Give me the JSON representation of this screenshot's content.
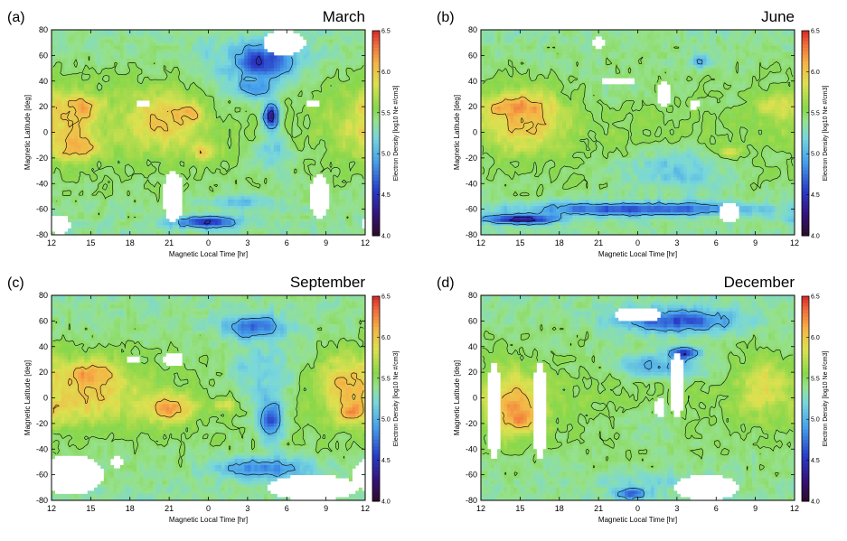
{
  "chart_data": [
    {
      "type": "heatmap",
      "letter": "(a)",
      "title": "March",
      "xlabel": "Magnetic Local Time [hr]",
      "ylabel": "Magnetic Latitude [deg]",
      "x_ticks": [
        "12",
        "15",
        "18",
        "21",
        "0",
        "3",
        "6",
        "9",
        "12"
      ],
      "y_ticks": [
        "80",
        "60",
        "40",
        "20",
        "0",
        "-20",
        "-40",
        "-60",
        "-80"
      ],
      "ylim": [
        -80,
        80
      ],
      "colorbar": {
        "label": "Electron Density [log10 Ne #/cm3]",
        "ticks": [
          "6.5",
          "6.0",
          "5.5",
          "5.0",
          "4.5",
          "4.0"
        ],
        "range": [
          4.0,
          6.5
        ]
      },
      "blobs": [
        {
          "x": 1.0,
          "y": 10,
          "rx": 3.2,
          "ry": 28,
          "v": 6.0
        },
        {
          "x": 8.5,
          "y": 10,
          "rx": 3.0,
          "ry": 26,
          "v": 6.0
        },
        {
          "x": 2.0,
          "y": -12,
          "rx": 1.8,
          "ry": 10,
          "v": 6.15
        },
        {
          "x": 2.5,
          "y": 20,
          "rx": 1.5,
          "ry": 8,
          "v": 6.1
        },
        {
          "x": 10.3,
          "y": 15,
          "rx": 1.3,
          "ry": 8,
          "v": 6.1
        },
        {
          "x": 11.7,
          "y": -15,
          "rx": 1.0,
          "ry": 8,
          "v": 6.0
        },
        {
          "x": 16.0,
          "y": 55,
          "rx": 3.0,
          "ry": 16,
          "v": 4.5
        },
        {
          "x": 15.5,
          "y": 35,
          "rx": 1.8,
          "ry": 10,
          "v": 4.9
        },
        {
          "x": 16.8,
          "y": 12,
          "rx": 0.7,
          "ry": 12,
          "v": 4.3
        },
        {
          "x": 17.0,
          "y": -15,
          "rx": 1.5,
          "ry": 18,
          "v": 5.1
        },
        {
          "x": 11.8,
          "y": -70,
          "rx": 2.5,
          "ry": 5,
          "v": 4.4
        },
        {
          "x": 14.5,
          "y": -55,
          "rx": 2.5,
          "ry": 8,
          "v": 5.05
        },
        {
          "x": 12.5,
          "y": 55,
          "rx": 1.8,
          "ry": 20,
          "v": 5.2
        }
      ],
      "gaps": [
        {
          "x": 17.8,
          "y": 70,
          "rx": 1.6,
          "ry": 10
        },
        {
          "x": 9.3,
          "y": -50,
          "rx": 0.8,
          "ry": 20
        },
        {
          "x": 20.5,
          "y": -50,
          "rx": 0.8,
          "ry": 18
        },
        {
          "x": 7.0,
          "y": 22,
          "rx": 0.6,
          "ry": 3
        },
        {
          "x": 20.0,
          "y": 22,
          "rx": 0.5,
          "ry": 3
        },
        {
          "x": 0.6,
          "y": -72,
          "rx": 0.8,
          "ry": 8
        }
      ]
    },
    {
      "type": "heatmap",
      "letter": "(b)",
      "title": "June",
      "xlabel": "Magnetic Local Time [hr]",
      "ylabel": "Magnetic Latitude [deg]",
      "x_ticks": [
        "12",
        "15",
        "18",
        "21",
        "0",
        "3",
        "6",
        "9",
        "12"
      ],
      "y_ticks": [
        "80",
        "60",
        "40",
        "20",
        "0",
        "-20",
        "-40",
        "-60",
        "-80"
      ],
      "ylim": [
        -80,
        80
      ],
      "colorbar": {
        "label": "Electron Density [log10 Ne #/cm3]",
        "ticks": [
          "6.5",
          "6.0",
          "5.5",
          "5.0",
          "4.5",
          "4.0"
        ],
        "range": [
          4.0,
          6.5
        ]
      },
      "blobs": [
        {
          "x": 3.3,
          "y": 10,
          "rx": 3.5,
          "ry": 26,
          "v": 6.05
        },
        {
          "x": 2.5,
          "y": 20,
          "rx": 2.2,
          "ry": 8,
          "v": 6.25
        },
        {
          "x": 22.5,
          "y": 20,
          "rx": 1.5,
          "ry": 10,
          "v": 5.9
        },
        {
          "x": 19.0,
          "y": -15,
          "rx": 1.0,
          "ry": 5,
          "v": 6.0
        },
        {
          "x": 15.0,
          "y": -30,
          "rx": 4.5,
          "ry": 18,
          "v": 5.1
        },
        {
          "x": 12.0,
          "y": -60,
          "rx": 10.0,
          "ry": 6,
          "v": 4.6
        },
        {
          "x": 3.0,
          "y": -68,
          "rx": 3.0,
          "ry": 4,
          "v": 4.3
        },
        {
          "x": 16.8,
          "y": 55,
          "rx": 0.8,
          "ry": 6,
          "v": 5.0
        },
        {
          "x": 10.5,
          "y": 30,
          "rx": 2.0,
          "ry": 10,
          "v": 5.35
        }
      ],
      "gaps": [
        {
          "x": 10.5,
          "y": 40,
          "rx": 1.5,
          "ry": 3
        },
        {
          "x": 14.0,
          "y": 30,
          "rx": 0.5,
          "ry": 10
        },
        {
          "x": 16.3,
          "y": 22,
          "rx": 0.4,
          "ry": 4
        },
        {
          "x": 19.0,
          "y": -62,
          "rx": 0.8,
          "ry": 8
        },
        {
          "x": 9.0,
          "y": 70,
          "rx": 0.6,
          "ry": 4
        }
      ]
    },
    {
      "type": "heatmap",
      "letter": "(c)",
      "title": "September",
      "xlabel": "Magnetic Local Time [hr]",
      "ylabel": "Magnetic Latitude [deg]",
      "x_ticks": [
        "12",
        "15",
        "18",
        "21",
        "0",
        "3",
        "6",
        "9",
        "12"
      ],
      "y_ticks": [
        "80",
        "60",
        "40",
        "20",
        "0",
        "-20",
        "-40",
        "-60",
        "-80"
      ],
      "ylim": [
        -80,
        80
      ],
      "colorbar": {
        "label": "Electron Density [log10 Ne #/cm3]",
        "ticks": [
          "6.5",
          "6.0",
          "5.5",
          "5.0",
          "4.5",
          "4.0"
        ],
        "range": [
          4.0,
          6.5
        ]
      },
      "blobs": [
        {
          "x": 3.0,
          "y": 5,
          "rx": 4.0,
          "ry": 28,
          "v": 6.0
        },
        {
          "x": 3.0,
          "y": 18,
          "rx": 1.8,
          "ry": 8,
          "v": 6.2
        },
        {
          "x": 9.0,
          "y": -8,
          "rx": 2.0,
          "ry": 12,
          "v": 6.15
        },
        {
          "x": 22.5,
          "y": 10,
          "rx": 2.5,
          "ry": 25,
          "v": 6.05
        },
        {
          "x": 23.0,
          "y": -10,
          "rx": 1.2,
          "ry": 10,
          "v": 6.2
        },
        {
          "x": 13.5,
          "y": -5,
          "rx": 1.0,
          "ry": 6,
          "v": 6.0
        },
        {
          "x": 16.8,
          "y": -15,
          "rx": 1.0,
          "ry": 20,
          "v": 4.5
        },
        {
          "x": 15.5,
          "y": 55,
          "rx": 2.5,
          "ry": 10,
          "v": 4.6
        },
        {
          "x": 16.0,
          "y": -55,
          "rx": 4.0,
          "ry": 10,
          "v": 4.8
        },
        {
          "x": 16.0,
          "y": 20,
          "rx": 3.0,
          "ry": 30,
          "v": 5.15
        }
      ],
      "gaps": [
        {
          "x": 1.5,
          "y": -60,
          "rx": 2.5,
          "ry": 16
        },
        {
          "x": 9.3,
          "y": 30,
          "rx": 0.8,
          "ry": 6
        },
        {
          "x": 20.0,
          "y": -70,
          "rx": 3.5,
          "ry": 10
        },
        {
          "x": 6.2,
          "y": 30,
          "rx": 0.5,
          "ry": 3
        },
        {
          "x": 5.0,
          "y": -50,
          "rx": 0.4,
          "ry": 6
        }
      ]
    },
    {
      "type": "heatmap",
      "letter": "(d)",
      "title": "December",
      "xlabel": "Magnetic Local Time [hr]",
      "ylabel": "Magnetic Latitude [deg]",
      "x_ticks": [
        "12",
        "15",
        "18",
        "21",
        "0",
        "3",
        "6",
        "9",
        "12"
      ],
      "y_ticks": [
        "80",
        "60",
        "40",
        "20",
        "0",
        "-20",
        "-40",
        "-60",
        "-80"
      ],
      "ylim": [
        -80,
        80
      ],
      "colorbar": {
        "label": "Electron Density [log10 Ne #/cm3]",
        "ticks": [
          "6.5",
          "6.0",
          "5.5",
          "5.0",
          "4.5",
          "4.0"
        ],
        "range": [
          4.0,
          6.5
        ]
      },
      "blobs": [
        {
          "x": 2.5,
          "y": -5,
          "rx": 2.5,
          "ry": 28,
          "v": 6.1
        },
        {
          "x": 3.0,
          "y": -15,
          "rx": 1.2,
          "ry": 10,
          "v": 6.25
        },
        {
          "x": 21.5,
          "y": 10,
          "rx": 2.0,
          "ry": 25,
          "v": 5.9
        },
        {
          "x": 15.0,
          "y": 60,
          "rx": 5.0,
          "ry": 10,
          "v": 4.6
        },
        {
          "x": 14.0,
          "y": 25,
          "rx": 4.0,
          "ry": 12,
          "v": 5.0
        },
        {
          "x": 15.5,
          "y": 35,
          "rx": 1.2,
          "ry": 5,
          "v": 4.4
        },
        {
          "x": 13.0,
          "y": -65,
          "rx": 5.0,
          "ry": 8,
          "v": 5.2
        },
        {
          "x": 13.0,
          "y": -20,
          "rx": 3.5,
          "ry": 15,
          "v": 5.35
        },
        {
          "x": 11.5,
          "y": -75,
          "rx": 1.5,
          "ry": 5,
          "v": 4.7
        }
      ],
      "gaps": [
        {
          "x": 1.0,
          "y": -10,
          "rx": 0.6,
          "ry": 38
        },
        {
          "x": 4.5,
          "y": -10,
          "rx": 0.6,
          "ry": 38
        },
        {
          "x": 12.0,
          "y": 65,
          "rx": 1.8,
          "ry": 6
        },
        {
          "x": 15.0,
          "y": 10,
          "rx": 0.6,
          "ry": 25
        },
        {
          "x": 17.3,
          "y": -70,
          "rx": 2.5,
          "ry": 10
        },
        {
          "x": 13.7,
          "y": -8,
          "rx": 0.4,
          "ry": 8
        }
      ]
    }
  ]
}
